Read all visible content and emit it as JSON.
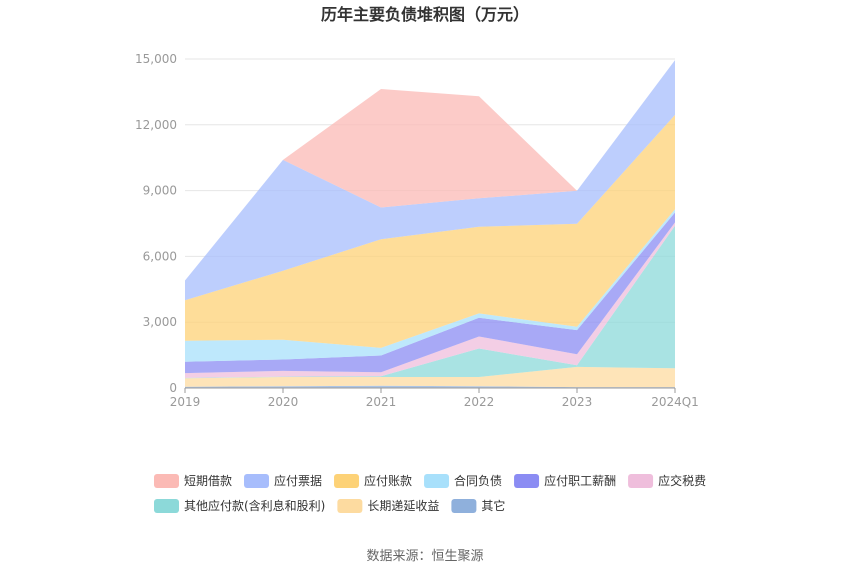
{
  "chart_data": {
    "type": "area",
    "stacked": true,
    "title": "历年主要负债堆积图（万元）",
    "source": "数据来源：恒生聚源",
    "categories": [
      "2019",
      "2020",
      "2021",
      "2022",
      "2023",
      "2024Q1"
    ],
    "ylim": [
      0,
      15000
    ],
    "yticks": [
      "0",
      "3,000",
      "6,000",
      "9,000",
      "12,000",
      "15,000"
    ],
    "grid": true,
    "legend_position": "bottom",
    "series": [
      {
        "name": "其它",
        "color": "#8fb0dc",
        "values": [
          60,
          80,
          100,
          80,
          40,
          40
        ]
      },
      {
        "name": "长期递延收益",
        "color": "#fddba0",
        "values": [
          380,
          420,
          400,
          420,
          920,
          860
        ]
      },
      {
        "name": "其他应付款(含利息和股利)",
        "color": "#8cd9d9",
        "values": [
          20,
          20,
          40,
          1300,
          80,
          6500
        ]
      },
      {
        "name": "应交税费",
        "color": "#efbedc",
        "values": [
          220,
          260,
          180,
          550,
          500,
          150
        ]
      },
      {
        "name": "应付职工薪酬",
        "color": "#8b8cf3",
        "values": [
          520,
          520,
          760,
          850,
          1100,
          450
        ]
      },
      {
        "name": "合同负债",
        "color": "#a8e0fb",
        "values": [
          950,
          900,
          350,
          200,
          150,
          150
        ]
      },
      {
        "name": "应付账款",
        "color": "#fdd277",
        "values": [
          1850,
          3150,
          4950,
          3950,
          4700,
          4300
        ]
      },
      {
        "name": "应付票据",
        "color": "#a7bdfc",
        "values": [
          900,
          5050,
          1450,
          1300,
          1500,
          2500
        ]
      },
      {
        "name": "短期借款",
        "color": "#fbbab5",
        "values": [
          0,
          0,
          5400,
          4650,
          0,
          0
        ]
      }
    ],
    "legend_order": [
      "短期借款",
      "应付票据",
      "应付账款",
      "合同负债",
      "应付职工薪酬",
      "应交税费",
      "其他应付款(含利息和股利)",
      "长期递延收益",
      "其它"
    ]
  }
}
